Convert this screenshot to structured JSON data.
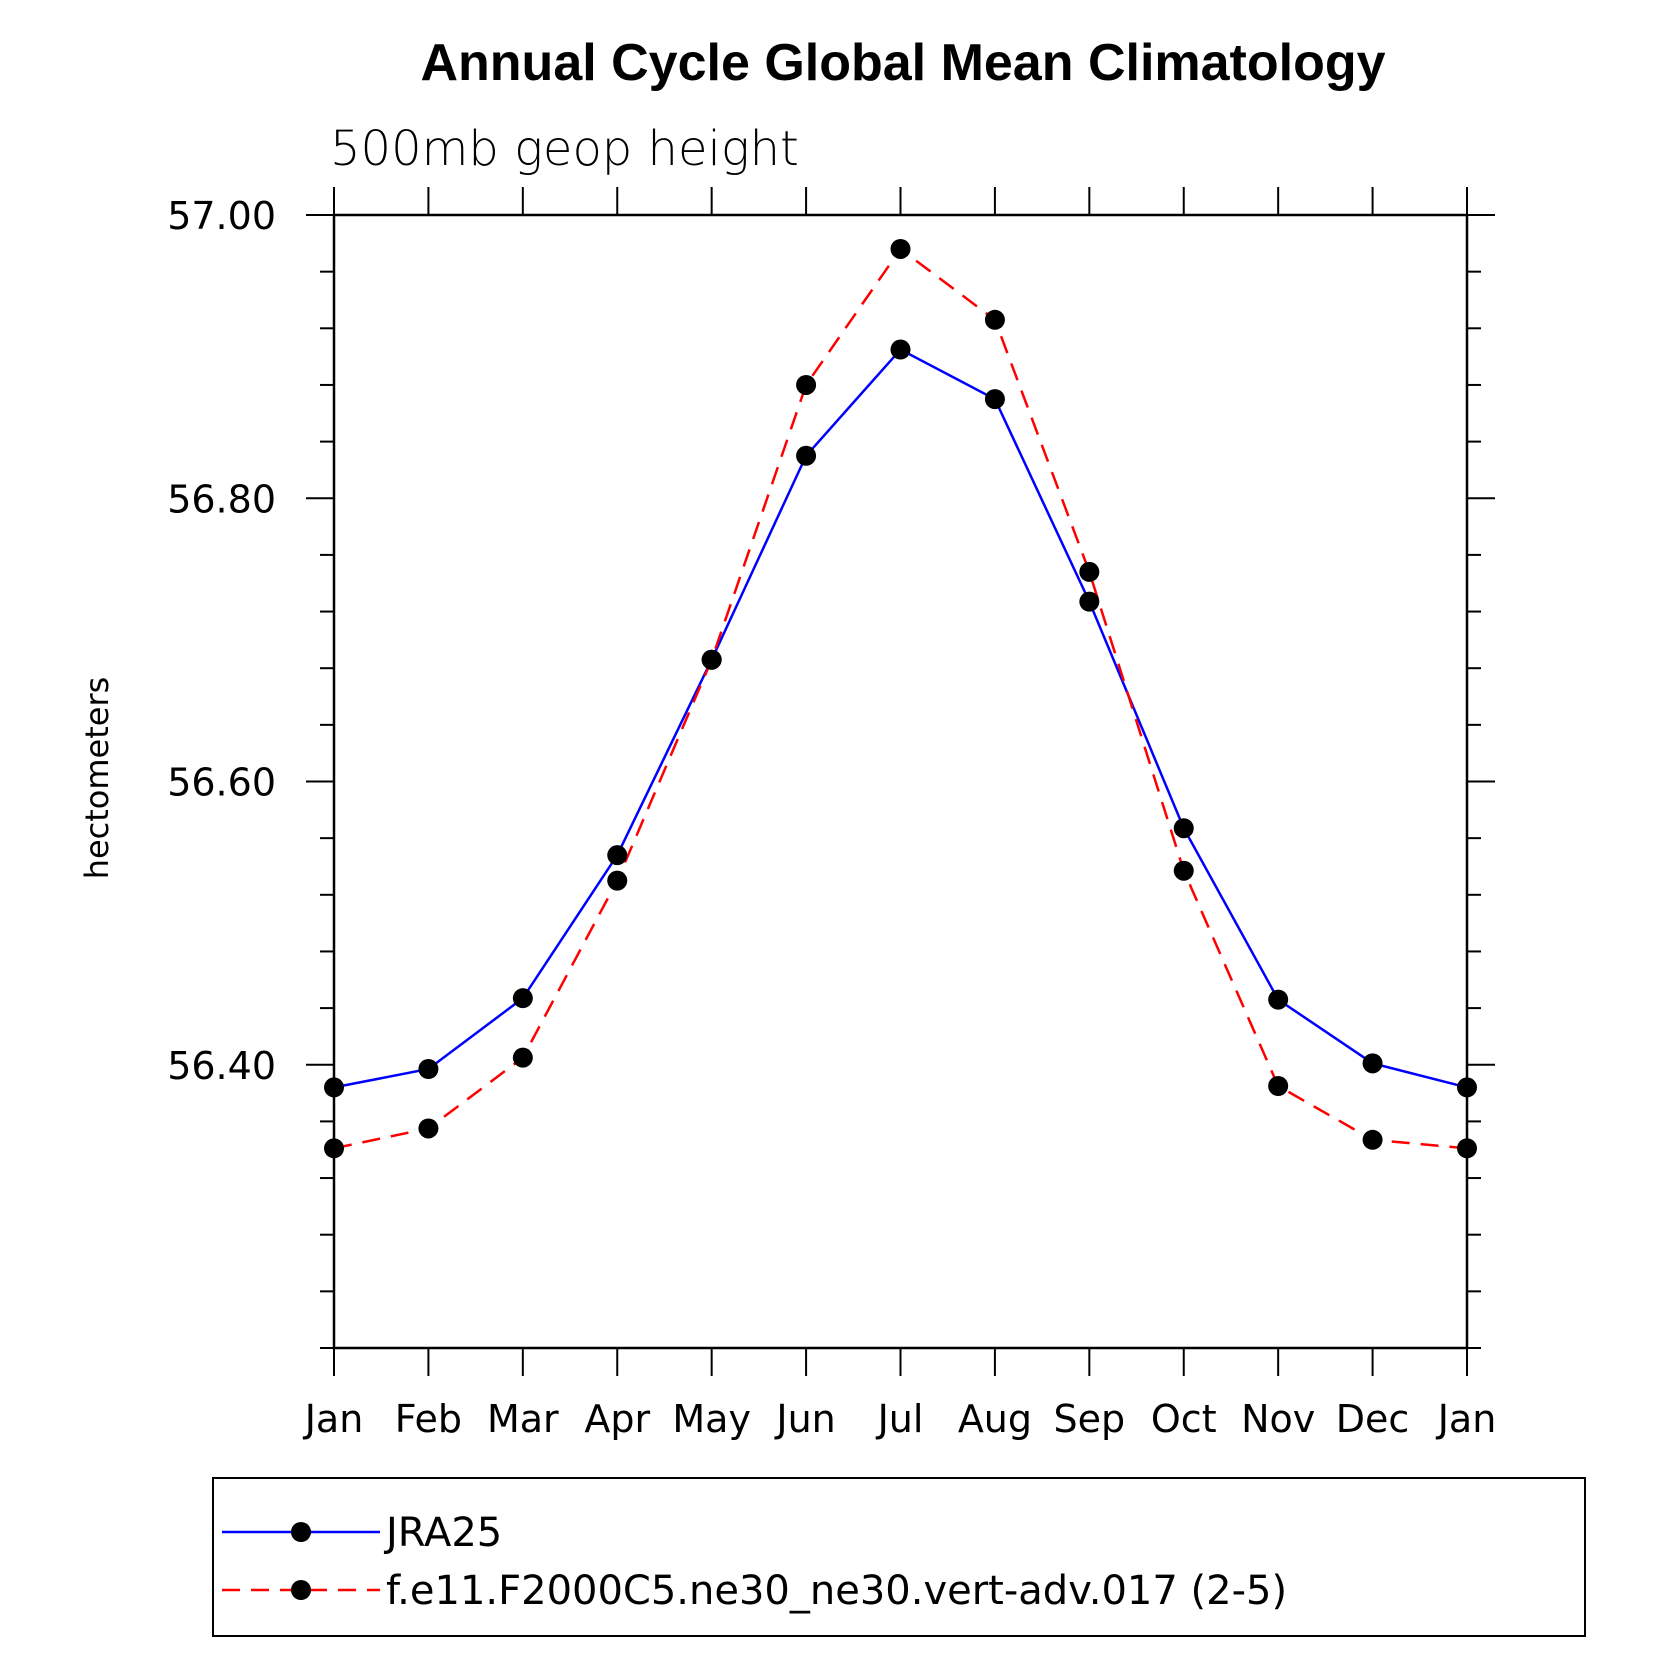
{
  "chart_data": {
    "type": "line",
    "title": "Annual Cycle Global Mean Climatology",
    "subtitle": "500mb geop height",
    "ylabel": "hectometers",
    "ylim": [
      56.2,
      57.0
    ],
    "yticks": [
      "56.40",
      "56.60",
      "56.80",
      "57.00"
    ],
    "categories": [
      "Jan",
      "Feb",
      "Mar",
      "Apr",
      "May",
      "Jun",
      "Jul",
      "Aug",
      "Sep",
      "Oct",
      "Nov",
      "Dec",
      "Jan"
    ],
    "series": [
      {
        "name": "JRA25",
        "color": "#0000ff",
        "dash": "solid",
        "values": [
          56.384,
          56.397,
          56.447,
          56.548,
          56.686,
          56.83,
          56.905,
          56.87,
          56.727,
          56.567,
          56.446,
          56.401,
          56.384
        ]
      },
      {
        "name": "f.e11.F2000C5.ne30_ne30.vert-adv.017 (2-5)",
        "color": "#ff0000",
        "dash": "dashed",
        "values": [
          56.341,
          56.355,
          56.405,
          56.53,
          56.686,
          56.88,
          56.976,
          56.926,
          56.748,
          56.537,
          56.385,
          56.347,
          56.341
        ]
      }
    ],
    "marker": "filled-circle",
    "legend_position": "bottom"
  }
}
